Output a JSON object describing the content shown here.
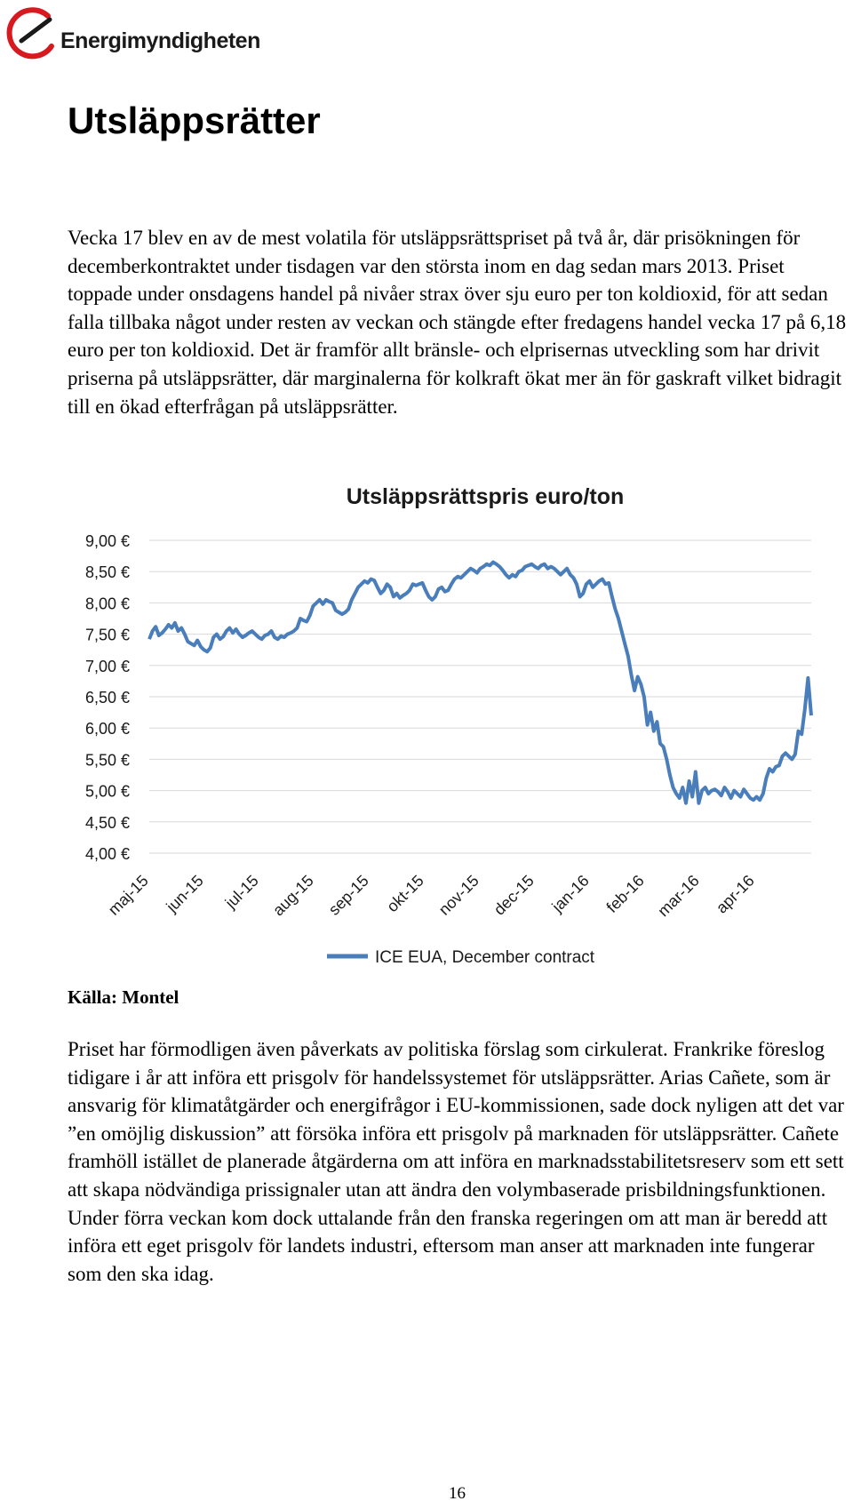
{
  "header": {
    "logo_text": "Energimyndigheten"
  },
  "title": "Utsläppsrätter",
  "paragraph1": "Vecka 17 blev en av de mest volatila för utsläppsrättspriset på två år, där prisökningen för decemberkontraktet under tisdagen var den största inom en dag sedan mars 2013. Priset toppade under onsdagens handel på nivåer strax över sju euro per ton koldioxid, för att sedan falla tillbaka något under resten av veckan och stängde efter fredagens handel vecka 17 på 6,18 euro per ton koldioxid. Det är framför allt bränsle- och elprisernas utveckling som har drivit priserna på utsläppsrätter, där marginalerna för kolkraft ökat mer än för gaskraft vilket bidragit till en ökad efterfrågan på utsläppsrätter.",
  "chart_data": {
    "type": "line",
    "title": "Utsläppsrättspris euro/ton",
    "xlabel": "",
    "ylabel": "",
    "ylim": [
      4.0,
      9.0
    ],
    "y_ticks": [
      "9,00 €",
      "8,50 €",
      "8,00 €",
      "7,50 €",
      "7,00 €",
      "6,50 €",
      "6,00 €",
      "5,50 €",
      "5,00 €",
      "4,50 €",
      "4,00 €"
    ],
    "x_ticks": [
      "maj-15",
      "jun-15",
      "jul-15",
      "aug-15",
      "sep-15",
      "okt-15",
      "nov-15",
      "dec-15",
      "jan-16",
      "feb-16",
      "mar-16",
      "apr-16"
    ],
    "legend_position": "bottom",
    "series": [
      {
        "name": "ICE EUA, December contract",
        "color": "#4a7ebb",
        "x": [
          0,
          0.06,
          0.12,
          0.18,
          0.24,
          0.3,
          0.36,
          0.42,
          0.48,
          0.54,
          0.6,
          0.66,
          0.72,
          0.78,
          0.84,
          0.9,
          0.96,
          1.02,
          1.08,
          1.14,
          1.2,
          1.26,
          1.32,
          1.38,
          1.44,
          1.5,
          1.56,
          1.62,
          1.68,
          1.74,
          1.8,
          1.86,
          1.92,
          1.98,
          2.04,
          2.1,
          2.16,
          2.22,
          2.28,
          2.34,
          2.4,
          2.46,
          2.52,
          2.58,
          2.64,
          2.7,
          2.76,
          2.82,
          2.88,
          2.94,
          3.0,
          3.06,
          3.12,
          3.18,
          3.24,
          3.3,
          3.36,
          3.42,
          3.48,
          3.54,
          3.6,
          3.66,
          3.72,
          3.78,
          3.84,
          3.9,
          3.96,
          4.02,
          4.08,
          4.14,
          4.2,
          4.26,
          4.32,
          4.38,
          4.44,
          4.5,
          4.56,
          4.62,
          4.68,
          4.74,
          4.8,
          4.86,
          4.92,
          4.98,
          5.04,
          5.1,
          5.16,
          5.22,
          5.28,
          5.34,
          5.4,
          5.46,
          5.52,
          5.58,
          5.64,
          5.7,
          5.76,
          5.82,
          5.88,
          5.94,
          6.0,
          6.06,
          6.12,
          6.18,
          6.24,
          6.3,
          6.36,
          6.42,
          6.48,
          6.54,
          6.6,
          6.66,
          6.72,
          6.78,
          6.84,
          6.9,
          6.96,
          7.02,
          7.08,
          7.14,
          7.2,
          7.26,
          7.32,
          7.38,
          7.44,
          7.5,
          7.56,
          7.62,
          7.68,
          7.74,
          7.8,
          7.86,
          7.92,
          7.98,
          8.04,
          8.1,
          8.16,
          8.22,
          8.28,
          8.34,
          8.4,
          8.46,
          8.52,
          8.58,
          8.64,
          8.7,
          8.76,
          8.82,
          8.88,
          8.94,
          9.0,
          9.06,
          9.12,
          9.18,
          9.24,
          9.3,
          9.36,
          9.42,
          9.48,
          9.54,
          9.6,
          9.66,
          9.72,
          9.78,
          9.84,
          9.9,
          9.96,
          10.02,
          10.08,
          10.14,
          10.2,
          10.26,
          10.32,
          10.38,
          10.44,
          10.5,
          10.56,
          10.62,
          10.68,
          10.74,
          10.8,
          10.86,
          10.92,
          10.98,
          11.04,
          11.1,
          11.16,
          11.22,
          11.28,
          11.34,
          11.4,
          11.46,
          11.52,
          11.58,
          11.64,
          11.7,
          11.76,
          11.82,
          11.88,
          11.94,
          12.0,
          12.06,
          12.12,
          12.18,
          12.24,
          12.3,
          12.36
        ],
        "values": [
          7.42,
          7.55,
          7.62,
          7.48,
          7.52,
          7.58,
          7.65,
          7.6,
          7.68,
          7.55,
          7.6,
          7.5,
          7.38,
          7.35,
          7.32,
          7.4,
          7.3,
          7.25,
          7.22,
          7.28,
          7.45,
          7.5,
          7.42,
          7.46,
          7.55,
          7.6,
          7.52,
          7.58,
          7.5,
          7.45,
          7.48,
          7.52,
          7.55,
          7.5,
          7.45,
          7.42,
          7.48,
          7.5,
          7.55,
          7.45,
          7.42,
          7.47,
          7.45,
          7.5,
          7.52,
          7.55,
          7.6,
          7.75,
          7.72,
          7.7,
          7.8,
          7.95,
          8.0,
          8.05,
          7.98,
          8.05,
          8.02,
          8.0,
          7.88,
          7.85,
          7.82,
          7.85,
          7.9,
          8.05,
          8.15,
          8.25,
          8.3,
          8.35,
          8.32,
          8.38,
          8.36,
          8.25,
          8.15,
          8.2,
          8.3,
          8.25,
          8.1,
          8.15,
          8.08,
          8.12,
          8.15,
          8.2,
          8.3,
          8.28,
          8.3,
          8.32,
          8.2,
          8.1,
          8.05,
          8.1,
          8.22,
          8.25,
          8.18,
          8.2,
          8.3,
          8.38,
          8.42,
          8.4,
          8.45,
          8.5,
          8.55,
          8.52,
          8.48,
          8.55,
          8.58,
          8.62,
          8.6,
          8.65,
          8.62,
          8.58,
          8.52,
          8.45,
          8.4,
          8.45,
          8.42,
          8.5,
          8.52,
          8.58,
          8.6,
          8.62,
          8.58,
          8.55,
          8.6,
          8.62,
          8.55,
          8.58,
          8.55,
          8.5,
          8.45,
          8.5,
          8.55,
          8.45,
          8.4,
          8.3,
          8.1,
          8.15,
          8.3,
          8.35,
          8.25,
          8.3,
          8.35,
          8.38,
          8.3,
          8.32,
          8.1,
          7.9,
          7.75,
          7.55,
          7.35,
          7.15,
          6.85,
          6.6,
          6.82,
          6.7,
          6.5,
          6.05,
          6.25,
          5.95,
          6.1,
          5.75,
          5.7,
          5.5,
          5.25,
          5.05,
          4.95,
          4.88,
          5.05,
          4.8,
          5.15,
          4.9,
          5.3,
          4.8,
          5.0,
          5.05,
          4.95,
          5.0,
          5.02,
          4.98,
          4.92,
          5.05,
          4.98,
          4.88,
          5.0,
          4.95,
          4.9,
          5.02,
          4.95,
          4.88,
          4.85,
          4.9,
          4.85,
          4.95,
          5.2,
          5.35,
          5.3,
          5.38,
          5.4,
          5.55,
          5.6,
          5.55,
          5.5,
          5.58,
          5.95,
          5.9,
          6.3,
          6.8,
          6.2
        ]
      }
    ]
  },
  "source": "Källa: Montel",
  "paragraph2": "Priset har förmodligen även påverkats av politiska förslag som cirkulerat. Frankrike föreslog tidigare i år att införa ett prisgolv för handelssystemet för utsläppsrätter. Arias Cañete, som är ansvarig för klimatåtgärder och energifrågor i EU-kommissionen, sade dock nyligen att det var ”en omöjlig diskussion” att försöka införa ett prisgolv på marknaden för utsläppsrätter. Cañete framhöll istället de planerade åtgärderna om att införa en marknadsstabilitetsreserv som ett sett att skapa nödvändiga prissignaler utan att ändra den volymbaserade prisbildningsfunktionen. Under förra veckan kom dock uttalande från den franska regeringen om att man är beredd att införa ett eget prisgolv för landets industri, eftersom man anser att marknaden inte fungerar som den ska idag.",
  "page_number": "16"
}
